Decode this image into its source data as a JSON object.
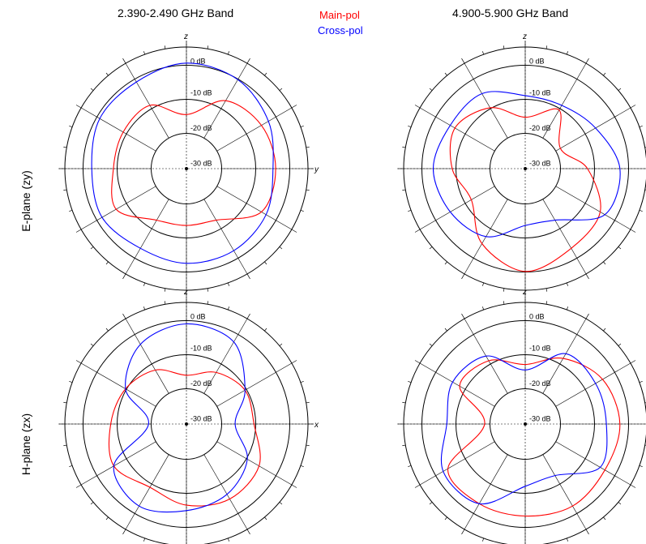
{
  "header": {
    "band_left": "2.390-2.490 GHz Band",
    "band_right": "4.900-5.900 GHz  Band"
  },
  "legend": {
    "main_label": "Main-pol",
    "cross_label": "Cross-pol",
    "main_color": "#ff0000",
    "cross_color": "#0000ff"
  },
  "rows": {
    "e_plane_label": "E-plane (zy)",
    "h_plane_label": "H-plane (zx)"
  },
  "chart_data": [
    {
      "type": "polar",
      "id": "e-plane-low",
      "band": "2.390-2.490 GHz Band",
      "plane": "E-plane (zy)",
      "top_axis": "z",
      "side_axis": "y",
      "rlim_db": [
        -40,
        0
      ],
      "ring_labels": [
        "0 dB",
        "-10 dB",
        "-20 dB",
        "-30 dB"
      ],
      "theta_deg": [
        0,
        30,
        60,
        90,
        120,
        150,
        180,
        210,
        240,
        270,
        300,
        330
      ],
      "series": [
        {
          "name": "Main-pol",
          "color": "#ff0000",
          "db": [
            -20,
            -11,
            -8,
            -7,
            -8,
            -18,
            -19,
            -18,
            -10,
            -13,
            -13,
            -13
          ]
        },
        {
          "name": "Cross-pol",
          "color": "#0000ff",
          "db": [
            -1,
            -2,
            -5,
            -8,
            -6,
            -5,
            -5,
            -6,
            -4,
            -5,
            -3,
            -3
          ]
        }
      ]
    },
    {
      "type": "polar",
      "id": "e-plane-high",
      "band": "4.900-5.900 GHz  Band",
      "plane": "E-plane (zy)",
      "top_axis": "z",
      "side_axis": "",
      "rlim_db": [
        -40,
        0
      ],
      "ring_labels": [
        "0 dB",
        "-10 dB",
        "-20 dB",
        "-30 dB"
      ],
      "theta_deg": [
        0,
        30,
        60,
        90,
        120,
        150,
        180,
        210,
        240,
        270,
        300,
        330
      ],
      "series": [
        {
          "name": "Main-pol",
          "color": "#ff0000",
          "db": [
            -21,
            -15,
            -25,
            -17,
            -8,
            -6,
            -2,
            -8,
            -17,
            -13,
            -10,
            -14
          ]
        },
        {
          "name": "Cross-pol",
          "color": "#0000ff",
          "db": [
            -13,
            -13,
            -10,
            -5,
            -6,
            -18,
            -19,
            -11,
            -8,
            -6,
            -8,
            -8
          ]
        }
      ]
    },
    {
      "type": "polar",
      "id": "h-plane-low",
      "band": "2.390-2.490 GHz Band",
      "plane": "H-plane (zx)",
      "top_axis": "z",
      "side_axis": "x",
      "rlim_db": [
        -40,
        0
      ],
      "ring_labels": [
        "0 dB",
        "-10 dB",
        "-20 dB",
        "-30 dB"
      ],
      "theta_deg": [
        0,
        30,
        60,
        90,
        120,
        150,
        180,
        210,
        240,
        270,
        300,
        330
      ],
      "series": [
        {
          "name": "Main-pol",
          "color": "#ff0000",
          "db": [
            -22,
            -18,
            -15,
            -15,
            -9,
            -8,
            -10,
            -13,
            -9,
            -12,
            -14,
            -17
          ]
        },
        {
          "name": "Cross-pol",
          "color": "#0000ff",
          "db": [
            -3,
            -5,
            -15,
            -22,
            -14,
            -10,
            -8,
            -5,
            -9,
            -26,
            -14,
            -6
          ]
        }
      ]
    },
    {
      "type": "polar",
      "id": "h-plane-high",
      "band": "4.900-5.900 GHz  Band",
      "plane": "H-plane (zx)",
      "top_axis": "z",
      "side_axis": "",
      "rlim_db": [
        -40,
        0
      ],
      "ring_labels": [
        "0 dB",
        "-10 dB",
        "-20 dB",
        "-30 dB"
      ],
      "theta_deg": [
        0,
        30,
        60,
        90,
        120,
        150,
        180,
        210,
        240,
        270,
        300,
        330
      ],
      "series": [
        {
          "name": "Main-pol",
          "color": "#ff0000",
          "db": [
            -18,
            -12,
            -7,
            -5,
            -6,
            -5,
            -6,
            -6,
            -7,
            -25,
            -12,
            -13
          ]
        },
        {
          "name": "Cross-pol",
          "color": "#0000ff",
          "db": [
            -20,
            -10,
            -10,
            -10,
            -8,
            -18,
            -17,
            -6,
            -5,
            -11,
            -9,
            -11
          ]
        }
      ]
    }
  ]
}
